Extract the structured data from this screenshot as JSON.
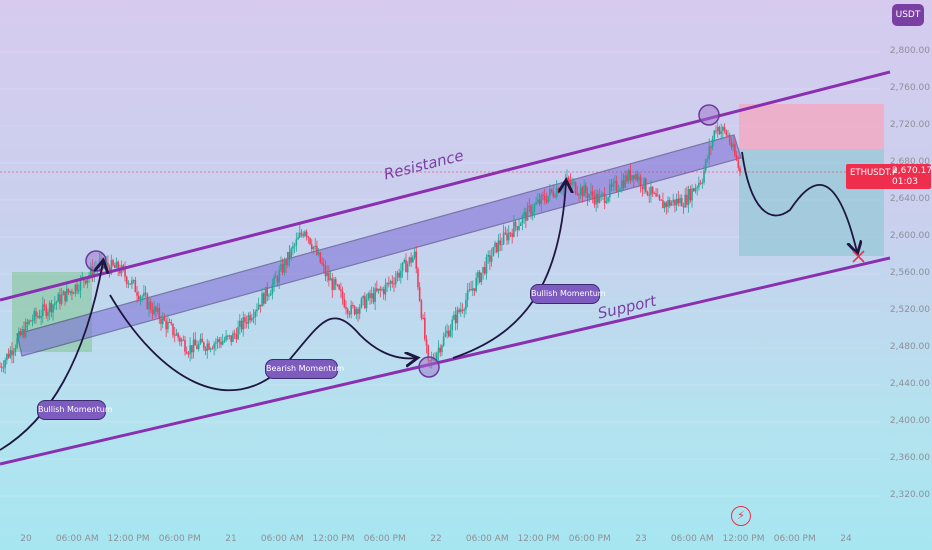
{
  "currency": "USDT",
  "symbol_tag": {
    "symbol": "ETHUSDT.P",
    "price": "2,670.17",
    "countdown": "01:03",
    "color": "#ef2e4e"
  },
  "channel_labels": {
    "resistance": "Resistance",
    "support": "Support"
  },
  "annotations": {
    "bullish_1": "Bullish Momentum",
    "bearish": "Bearish Momentum",
    "bullish_2": "Bullish Momentum"
  },
  "colors": {
    "channel": "#8a2fb0",
    "band_fill": "#7b6bd6",
    "up": "#1ea896",
    "down": "#f23b5a",
    "target_red": "#ef2e4e",
    "stop_zone": "#f7a6bd",
    "target_zone": "#8fc7d4",
    "entry_zone": "#86c79a"
  },
  "chart_data": {
    "type": "candlestick",
    "y_axis": {
      "ticks": [
        2320,
        2360,
        2400,
        2440,
        2480,
        2520,
        2560,
        2600,
        2640,
        2680,
        2720,
        2760,
        2800
      ],
      "tick_labels": [
        "2,320.00",
        "2,360.00",
        "2,400.00",
        "2,440.00",
        "2,480.00",
        "2,520.00",
        "2,560.00",
        "2,600.00",
        "2,640.00",
        "2,680.00",
        "2,720.00",
        "2,760.00",
        "2,800.00"
      ],
      "range": [
        2300,
        2830
      ]
    },
    "x_axis": {
      "labels": [
        "20",
        "06:00 AM",
        "12:00 PM",
        "06:00 PM",
        "21",
        "06:00 AM",
        "12:00 PM",
        "06:00 PM",
        "22",
        "06:00 AM",
        "12:00 PM",
        "06:00 PM",
        "23",
        "06:00 AM",
        "12:00 PM",
        "06:00 PM",
        "24"
      ]
    },
    "current_price": 2670.17,
    "path_keypoints": [
      {
        "t": 0,
        "p": 2460
      },
      {
        "t": 18,
        "p": 2510
      },
      {
        "t": 40,
        "p": 2540
      },
      {
        "t": 58,
        "p": 2570
      },
      {
        "t": 70,
        "p": 2565
      },
      {
        "t": 90,
        "p": 2520
      },
      {
        "t": 110,
        "p": 2480
      },
      {
        "t": 135,
        "p": 2490
      },
      {
        "t": 160,
        "p": 2550
      },
      {
        "t": 178,
        "p": 2610
      },
      {
        "t": 190,
        "p": 2560
      },
      {
        "t": 205,
        "p": 2520
      },
      {
        "t": 225,
        "p": 2545
      },
      {
        "t": 242,
        "p": 2580
      },
      {
        "t": 250,
        "p": 2460
      },
      {
        "t": 265,
        "p": 2510
      },
      {
        "t": 290,
        "p": 2590
      },
      {
        "t": 310,
        "p": 2630
      },
      {
        "t": 330,
        "p": 2660
      },
      {
        "t": 350,
        "p": 2640
      },
      {
        "t": 370,
        "p": 2670
      },
      {
        "t": 385,
        "p": 2635
      },
      {
        "t": 400,
        "p": 2640
      },
      {
        "t": 410,
        "p": 2665
      },
      {
        "t": 418,
        "p": 2720
      },
      {
        "t": 425,
        "p": 2710
      },
      {
        "t": 432,
        "p": 2670
      }
    ]
  }
}
